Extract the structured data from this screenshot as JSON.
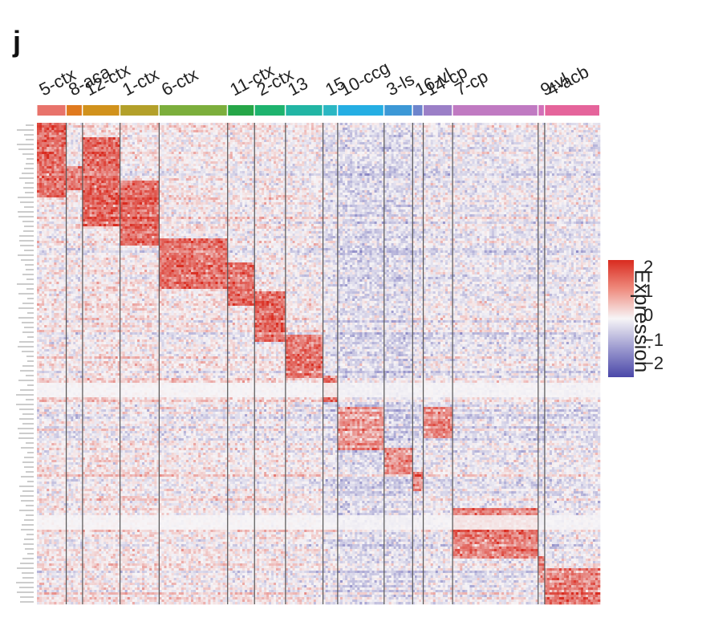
{
  "panel_label": "j",
  "colors": {
    "high": "#d92b1f",
    "mid": "#f7f5f7",
    "low": "#4a47a8",
    "separator": "#555555"
  },
  "legend": {
    "title": "Expression",
    "ticks": [
      "2",
      "1",
      "0",
      "−1",
      "−2"
    ]
  },
  "chart_data": {
    "type": "heatmap",
    "title": "",
    "xlabel": "",
    "ylabel": "",
    "value_range": [
      -2,
      2
    ],
    "clusters": [
      {
        "label": "5-ctx",
        "color": "#e8736b",
        "cells": 36,
        "marker_rows": [
          0,
          30
        ],
        "baseline": 0.1
      },
      {
        "label": "8-aca",
        "color": "#e07a1f",
        "cells": 20,
        "marker_rows": [
          18,
          27
        ],
        "baseline": 0.0
      },
      {
        "label": "12-ctx",
        "color": "#d1921c",
        "cells": 46,
        "marker_rows": [
          6,
          42
        ],
        "baseline": 0.2
      },
      {
        "label": "1-ctx",
        "color": "#b3a02a",
        "cells": 48,
        "marker_rows": [
          24,
          50
        ],
        "baseline": 0.15
      },
      {
        "label": "6-ctx",
        "color": "#7cae3c",
        "cells": 84,
        "marker_rows": [
          48,
          68
        ],
        "baseline": 0.1
      },
      {
        "label": "11-ctx",
        "color": "#26a648",
        "cells": 33,
        "marker_rows": [
          58,
          75
        ],
        "baseline": 0.05
      },
      {
        "label": "2-ctx",
        "color": "#1eb36e",
        "cells": 38,
        "marker_rows": [
          70,
          90
        ],
        "baseline": 0.1
      },
      {
        "label": "13",
        "color": "#22b5a4",
        "cells": 46,
        "marker_rows": [
          88,
          105
        ],
        "baseline": 0.0
      },
      {
        "label": "15",
        "color": "#2bb7c3",
        "cells": 18,
        "marker_rows": [
          105,
          115
        ],
        "baseline": -0.3
      },
      {
        "label": "10-ccg",
        "color": "#25aee3",
        "cells": 57,
        "marker_rows": [
          118,
          135
        ],
        "baseline": -0.5
      },
      {
        "label": "3-ls",
        "color": "#3c98d6",
        "cells": 35,
        "marker_rows": [
          135,
          145
        ],
        "baseline": -0.5
      },
      {
        "label": "16-vl",
        "color": "#6d84cc",
        "cells": 13,
        "marker_rows": [
          145,
          152
        ],
        "baseline": -0.3
      },
      {
        "label": "14-cp",
        "color": "#9b7fc7",
        "cells": 36,
        "marker_rows": [
          118,
          130
        ],
        "baseline": -0.2
      },
      {
        "label": "7-cp",
        "color": "#c07ac2",
        "cells": 105,
        "marker_rows": [
          160,
          180
        ],
        "baseline": -0.2
      },
      {
        "label": "9-vl",
        "color": "#d26fb8",
        "cells": 8,
        "marker_rows": [
          180,
          190
        ],
        "baseline": -0.3
      },
      {
        "label": "4-acb",
        "color": "#e5649b",
        "cells": 68,
        "marker_rows": [
          185,
          199
        ],
        "baseline": -0.2
      }
    ],
    "n_genes": 200
  }
}
